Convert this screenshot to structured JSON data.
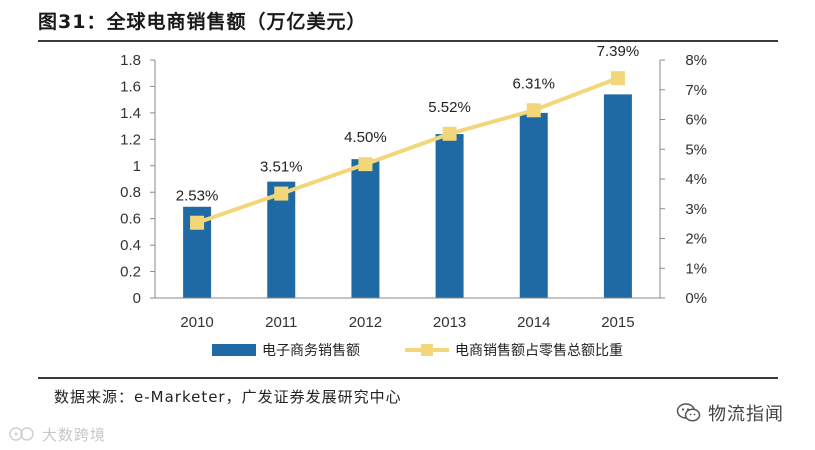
{
  "header": {
    "title": "图31：全球电商销售额（万亿美元）"
  },
  "chart_data": {
    "type": "bar",
    "title": "图31：全球电商销售额（万亿美元）",
    "categories": [
      "2010",
      "2011",
      "2012",
      "2013",
      "2014",
      "2015"
    ],
    "series": [
      {
        "name": "电子商务销售额",
        "kind": "bar",
        "axis": "left",
        "color": "#1f6aa5",
        "values": [
          0.69,
          0.88,
          1.05,
          1.24,
          1.4,
          1.54
        ]
      },
      {
        "name": "电商销售额占零售总额比重",
        "kind": "line",
        "axis": "right",
        "color": "#f2d77a",
        "values": [
          2.53,
          3.51,
          4.5,
          5.52,
          6.31,
          7.39
        ],
        "labels": [
          "2.53%",
          "3.51%",
          "4.50%",
          "5.52%",
          "6.31%",
          "7.39%"
        ]
      }
    ],
    "left_axis": {
      "ylim": [
        0,
        1.8
      ],
      "ticks": [
        "0",
        "0.2",
        "0.4",
        "0.6",
        "0.8",
        "1",
        "1.2",
        "1.4",
        "1.6",
        "1.8"
      ]
    },
    "right_axis": {
      "ylim": [
        0,
        8
      ],
      "ticks": [
        "0%",
        "1%",
        "2%",
        "3%",
        "4%",
        "5%",
        "6%",
        "7%",
        "8%"
      ]
    },
    "legend_position": "bottom",
    "grid": false
  },
  "footer": {
    "source": "数据来源：e-Marketer，广发证券发展研究中心"
  },
  "watermarks": {
    "right": "物流指闻",
    "left": "大数跨境"
  }
}
